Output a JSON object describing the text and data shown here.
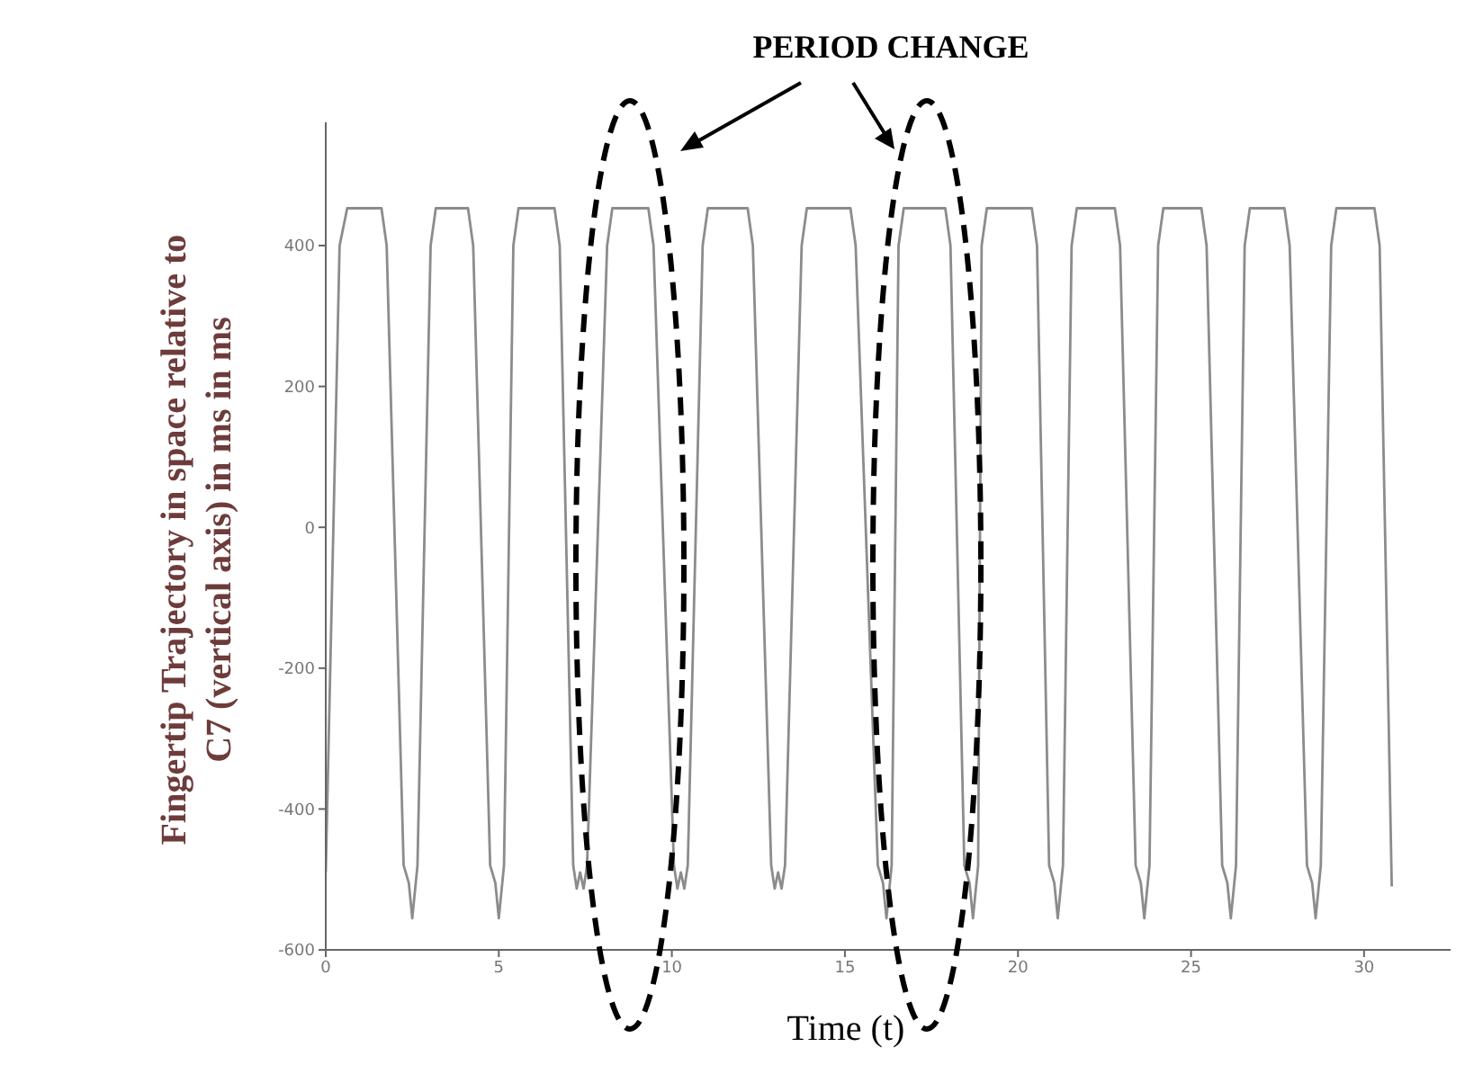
{
  "chart_data": {
    "type": "line",
    "title": "PERIOD CHANGE",
    "xlabel": "Time (t)",
    "ylabel": "Fingertip Trajectory in space relative to C7 (vertical axis) in ms in ms",
    "xlim": [
      0,
      32.5
    ],
    "ylim": [
      -600,
      575
    ],
    "xticks": [
      0,
      5,
      10,
      15,
      20,
      25,
      30
    ],
    "yticks": [
      -600,
      -400,
      -200,
      0,
      200,
      400
    ],
    "grid": false,
    "legend": false,
    "marker": "none",
    "line_style": "solid",
    "series": [
      {
        "color": "#8c8c8c",
        "x": [
          0,
          0.4,
          0.62,
          1.61,
          1.76,
          2.25,
          2.4,
          2.5,
          2.65,
          3.03,
          3.18,
          4.11,
          4.26,
          4.75,
          4.9,
          5.0,
          5.15,
          5.42,
          5.57,
          6.61,
          6.76,
          7.15,
          7.25,
          7.35,
          7.45,
          7.55,
          8.13,
          8.28,
          9.32,
          9.47,
          10.06,
          10.16,
          10.26,
          10.36,
          10.46,
          10.89,
          11.04,
          12.19,
          12.34,
          12.87,
          12.97,
          13.07,
          13.17,
          13.27,
          13.75,
          13.9,
          15.16,
          15.31,
          15.95,
          16.1,
          16.2,
          16.35,
          16.55,
          16.7,
          17.9,
          18.05,
          18.45,
          18.6,
          18.7,
          18.85,
          18.95,
          19.1,
          20.4,
          20.55,
          20.9,
          21.05,
          21.15,
          21.3,
          21.55,
          21.7,
          22.8,
          22.95,
          23.4,
          23.55,
          23.65,
          23.8,
          24.05,
          24.2,
          25.3,
          25.45,
          25.9,
          26.05,
          26.15,
          26.3,
          26.55,
          26.7,
          27.7,
          27.85,
          28.35,
          28.5,
          28.6,
          28.75,
          29.05,
          29.2,
          30.3,
          30.45,
          30.8
        ],
        "values": [
          -490,
          400,
          453,
          453,
          400,
          -480,
          -505,
          -555,
          -480,
          400,
          453,
          453,
          400,
          -480,
          -505,
          -555,
          -480,
          400,
          453,
          453,
          400,
          -480,
          -513,
          -490,
          -513,
          -480,
          400,
          453,
          453,
          400,
          -480,
          -513,
          -490,
          -513,
          -480,
          400,
          453,
          453,
          400,
          -480,
          -513,
          -490,
          -513,
          -480,
          400,
          453,
          453,
          400,
          -480,
          -505,
          -555,
          -480,
          400,
          453,
          453,
          400,
          -480,
          -505,
          -555,
          -480,
          400,
          453,
          453,
          400,
          -480,
          -505,
          -555,
          -480,
          400,
          453,
          453,
          400,
          -480,
          -505,
          -555,
          -480,
          400,
          453,
          453,
          400,
          -480,
          -505,
          -555,
          -480,
          400,
          453,
          453,
          400,
          -480,
          -505,
          -555,
          -480,
          400,
          453,
          453,
          400,
          -510
        ]
      }
    ]
  }
}
